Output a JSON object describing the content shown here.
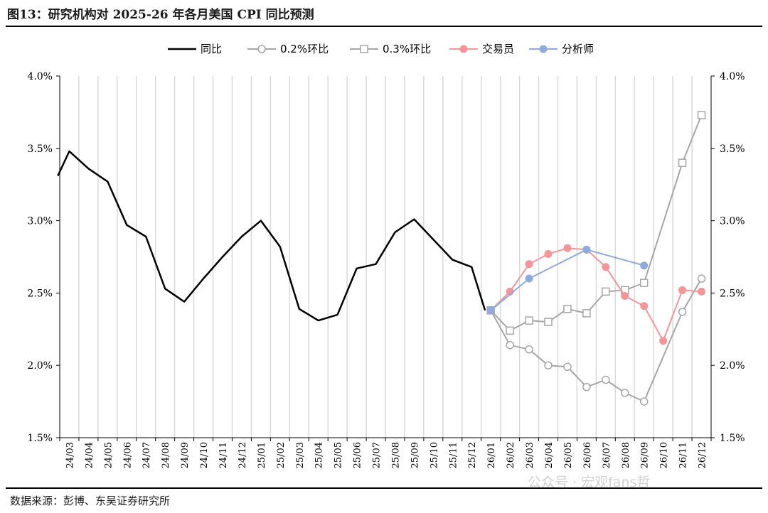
{
  "title": "图13：研究机构对 2025-26 年各月美国 CPI 同比预测",
  "source": "数据来源：彭博、东吴证券研究所",
  "watermark": "公众号 · 宏观fans哲",
  "chart_data": {
    "type": "line",
    "title": "图13：研究机构对 2025-26 年各月美国 CPI 同比预测",
    "xlabel": "",
    "ylabel": "",
    "ylim": [
      1.5,
      4.0
    ],
    "yticks": [
      "1.5%",
      "2.0%",
      "2.5%",
      "3.0%",
      "3.5%",
      "4.0%"
    ],
    "yticks_right": [
      "1.5%",
      "2.0%",
      "2.5%",
      "3.0%",
      "3.5%",
      "4.0%"
    ],
    "x_tick_labels": [
      "24/03",
      "24/04",
      "24/05",
      "24/06",
      "24/07",
      "24/08",
      "24/09",
      "24/10",
      "24/11",
      "24/12",
      "25/01",
      "25/02",
      "25/03",
      "25/04",
      "25/05",
      "25/06",
      "25/07",
      "25/08",
      "25/09",
      "25/10",
      "25/11",
      "25/12",
      "26/01",
      "26/02",
      "26/03",
      "26/04",
      "26/05",
      "26/06",
      "26/07",
      "26/08",
      "26/09",
      "26/10",
      "26/11",
      "26/12"
    ],
    "legend_position": "top-center",
    "grid": "vertical",
    "series": [
      {
        "name": "同比",
        "color": "#000000",
        "marker": "none",
        "x": [
          -0.1,
          0.5,
          1.5,
          2.5,
          3.5,
          4.5,
          5.5,
          6.5,
          7.5,
          8.5,
          9.5,
          10.5,
          11.5,
          12.5,
          13.5,
          14.5,
          15.5,
          16.5,
          17.5,
          18.5,
          19.5,
          20.5,
          21.5,
          22.2
        ],
        "values": [
          3.31,
          3.48,
          3.36,
          3.27,
          2.97,
          2.89,
          2.53,
          2.44,
          2.6,
          2.75,
          2.89,
          3.0,
          2.82,
          2.39,
          2.31,
          2.35,
          2.67,
          2.7,
          2.92,
          3.01,
          2.87,
          2.73,
          2.68,
          2.38
        ]
      },
      {
        "name": "0.2%环比",
        "color": "#a6a6a6",
        "marker": "circle",
        "x": [
          22.5,
          23.5,
          24.5,
          25.5,
          26.5,
          27.5,
          28.5,
          29.5,
          30.5,
          31.5,
          32.5,
          33.5
        ],
        "values": [
          2.38,
          2.14,
          2.11,
          2.0,
          1.99,
          1.85,
          1.9,
          1.81,
          1.75,
          null,
          2.37,
          2.6
        ],
        "connect_gaps": true
      },
      {
        "name": "0.3%环比",
        "color": "#a6a6a6",
        "marker": "square",
        "x": [
          22.5,
          23.5,
          24.5,
          25.5,
          26.5,
          27.5,
          28.5,
          29.5,
          30.5,
          31.5,
          32.5,
          33.5
        ],
        "values": [
          2.38,
          2.24,
          2.31,
          2.3,
          2.39,
          2.36,
          2.51,
          2.52,
          2.57,
          null,
          3.4,
          3.73
        ],
        "connect_gaps": true
      },
      {
        "name": "交易员",
        "color": "#f4959a",
        "marker": "circle-filled",
        "x": [
          22.5,
          23.5,
          24.5,
          25.5,
          26.5,
          27.5,
          28.5,
          29.5,
          30.5,
          31.5,
          32.5,
          33.5
        ],
        "values": [
          2.38,
          2.51,
          2.7,
          2.77,
          2.81,
          2.8,
          2.68,
          2.48,
          2.41,
          2.17,
          2.52,
          2.51
        ]
      },
      {
        "name": "分析师",
        "color": "#8faadc",
        "marker": "circle-filled",
        "x": [
          22.5,
          24.5,
          27.5,
          30.5
        ],
        "values": [
          2.38,
          2.6,
          2.8,
          2.69
        ]
      }
    ]
  }
}
